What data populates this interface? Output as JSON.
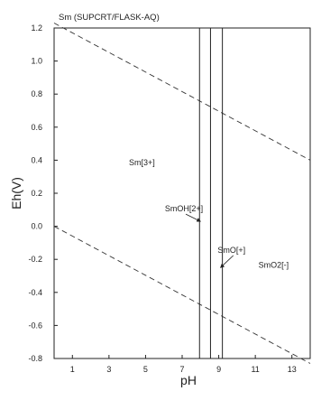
{
  "chart_data": {
    "type": "line",
    "title": "Sm (SUPCRT/FLASK-AQ)",
    "xlabel": "pH",
    "ylabel": "Eh(V)",
    "xlim": [
      0,
      14
    ],
    "ylim": [
      -0.8,
      1.2
    ],
    "x_ticks": [
      1,
      3,
      5,
      7,
      9,
      11,
      13
    ],
    "y_ticks": [
      -0.8,
      -0.6,
      -0.4,
      -0.2,
      0.0,
      0.2,
      0.4,
      0.6,
      0.8,
      1.0,
      1.2
    ],
    "y_tick_labels": [
      "-0.8",
      "-0.6",
      "-0.4",
      "-0.2",
      "0.0",
      "0.2",
      "0.4",
      "0.6",
      "0.8",
      "1.0",
      "1.2"
    ],
    "grid": false,
    "water_stability_lines": [
      {
        "x": [
          0,
          14
        ],
        "y": [
          1.23,
          0.4
        ],
        "style": "dashed"
      },
      {
        "x": [
          0,
          14
        ],
        "y": [
          0.0,
          -0.83
        ],
        "style": "dashed"
      }
    ],
    "boundaries": [
      {
        "x": [
          7.95,
          7.95
        ],
        "y": [
          -0.8,
          1.2
        ]
      },
      {
        "x": [
          8.55,
          8.55
        ],
        "y": [
          -0.8,
          1.2
        ]
      },
      {
        "x": [
          9.2,
          9.2
        ],
        "y": [
          -0.8,
          1.2
        ]
      }
    ],
    "regions": [
      {
        "label": "Sm[3+]",
        "x": 4.8,
        "y": 0.37
      },
      {
        "label": "SmOH[2+]",
        "x": 7.1,
        "y": 0.09,
        "arrow_to": [
          8.0,
          0.03
        ]
      },
      {
        "label": "SmO[+]",
        "x": 9.7,
        "y": -0.16,
        "arrow_to": [
          9.1,
          -0.25
        ]
      },
      {
        "label": "SmO2[-]",
        "x": 12.0,
        "y": -0.25
      }
    ]
  }
}
